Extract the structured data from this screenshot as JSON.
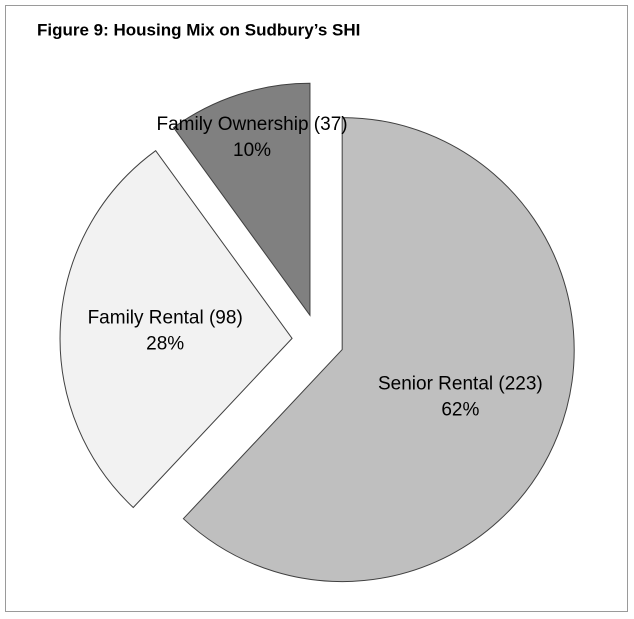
{
  "chart_data": {
    "type": "pie",
    "title": "Figure 9: Housing Mix on Sudbury’s SHI",
    "categories": [
      "Senior Rental (223)",
      "Family Rental (98)",
      "Family Ownership (37)"
    ],
    "values": [
      62,
      28,
      10
    ],
    "value_labels": [
      "62%",
      "28%",
      "10%"
    ],
    "colors": [
      "#bfbfbf",
      "#f2f2f2",
      "#808080"
    ]
  }
}
